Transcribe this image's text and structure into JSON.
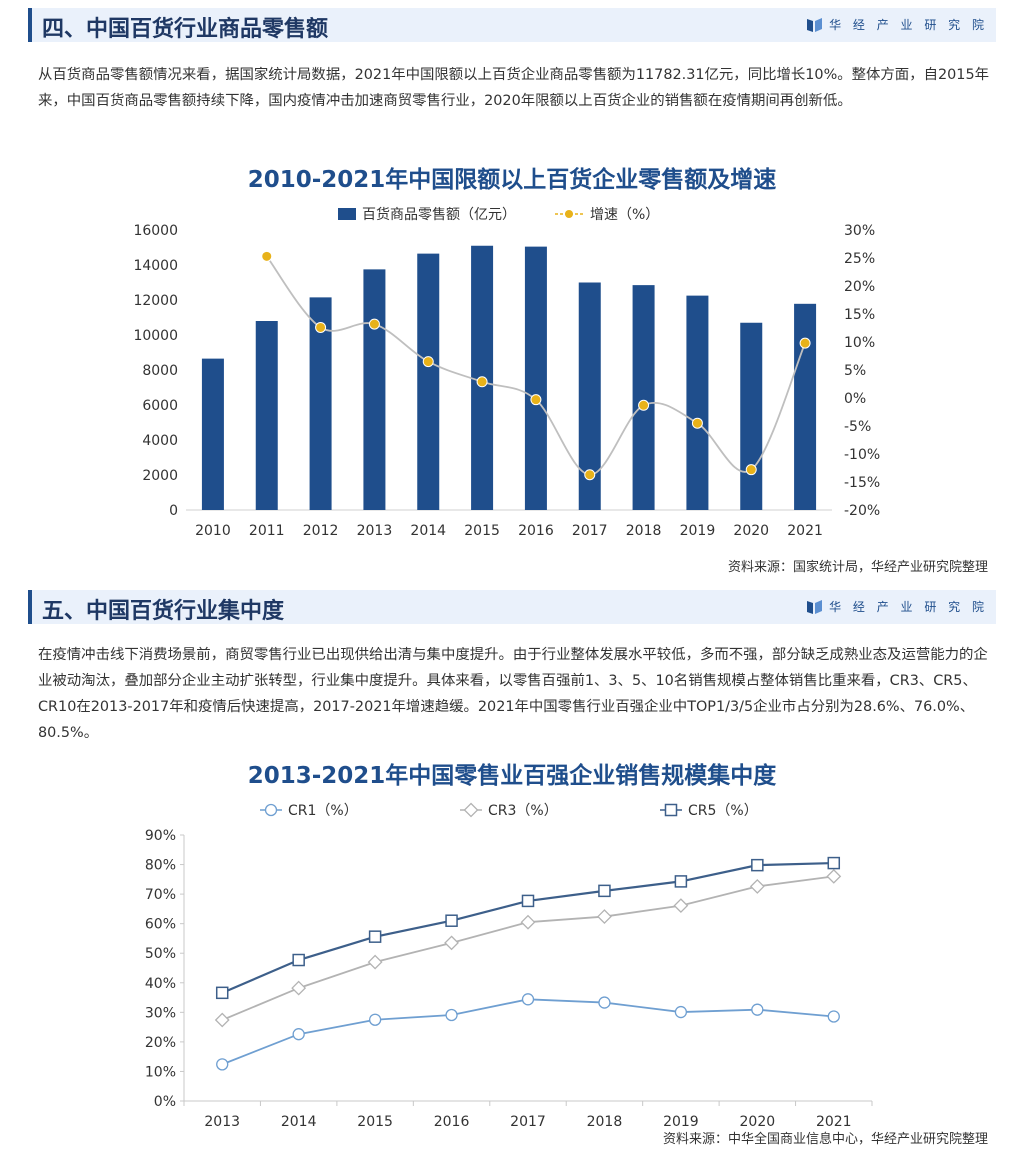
{
  "brand": {
    "name": "华 经 产 业 研 究 院"
  },
  "section4": {
    "title": "四、中国百货行业商品零售额",
    "paragraph": "从百货商品零售额情况来看，据国家统计局数据，2021年中国限额以上百货企业商品零售额为11782.31亿元，同比增长10%。整体方面，自2015年来，中国百货商品零售额持续下降，国内疫情冲击加速商贸零售行业，2020年限额以上百货企业的销售额在疫情期间再创新低。",
    "source": "资料来源：国家统计局，华经产业研究院整理"
  },
  "section5": {
    "title": "五、中国百货行业集中度",
    "paragraph": "在疫情冲击线下消费场景前，商贸零售行业已出现供给出清与集中度提升。由于行业整体发展水平较低，多而不强，部分缺乏成熟业态及运营能力的企业被动淘汰，叠加部分企业主动扩张转型，行业集中度提升。具体来看，以零售百强前1、3、5、10名销售规模占整体销售比重来看，CR3、CR5、CR10在2013-2017年和疫情后快速提高，2017-2021年增速趋缓。2021年中国零售行业百强企业中TOP1/3/5企业市占分别为28.6%、76.0%、80.5%。",
    "source": "资料来源：中华全国商业信息中心，华经产业研究院整理"
  },
  "colors": {
    "bar": "#1f4e8c",
    "dot": "#e8b21a",
    "growth_line": "#bfbfbf",
    "cr1": "#6f9fd1",
    "cr3": "#b3b3b3",
    "cr5": "#3d5f8a"
  },
  "chart_data": [
    {
      "type": "bar",
      "title": "2010-2021年中国限额以上百货企业零售额及增速",
      "categories": [
        "2010",
        "2011",
        "2012",
        "2013",
        "2014",
        "2015",
        "2016",
        "2017",
        "2018",
        "2019",
        "2020",
        "2021"
      ],
      "series": [
        {
          "name": "百货商品零售额（亿元）",
          "type": "bar",
          "axis": "left",
          "values": [
            8650,
            10800,
            12150,
            13750,
            14650,
            15100,
            15050,
            13000,
            12850,
            12250,
            10700,
            11782.31
          ]
        },
        {
          "name": "增速（%）",
          "type": "line",
          "axis": "right",
          "values": [
            null,
            25.3,
            12.6,
            13.2,
            6.5,
            2.9,
            -0.3,
            -13.7,
            -1.3,
            -4.5,
            -12.8,
            9.8
          ]
        }
      ],
      "y_left": {
        "min": 0,
        "max": 16000,
        "ticks": [
          "0",
          "2000",
          "4000",
          "6000",
          "8000",
          "10000",
          "12000",
          "14000",
          "16000"
        ]
      },
      "y_right": {
        "min": -20,
        "max": 30,
        "ticks": [
          "-20%",
          "-15%",
          "-10%",
          "-5%",
          "0%",
          "5%",
          "10%",
          "15%",
          "20%",
          "25%",
          "30%"
        ]
      },
      "legend_position": "top-center"
    },
    {
      "type": "line",
      "title": "2013-2021年中国零售业百强企业销售规模集中度",
      "categories": [
        "2013",
        "2014",
        "2015",
        "2016",
        "2017",
        "2018",
        "2019",
        "2020",
        "2021"
      ],
      "series": [
        {
          "name": "CR1（%）",
          "marker": "circle",
          "values": [
            12.4,
            22.6,
            27.5,
            29.1,
            34.4,
            33.3,
            30.1,
            30.9,
            28.6
          ]
        },
        {
          "name": "CR3（%）",
          "marker": "diamond",
          "values": [
            27.4,
            38.2,
            47.0,
            53.5,
            60.5,
            62.4,
            66.1,
            72.6,
            76.0
          ]
        },
        {
          "name": "CR5（%）",
          "marker": "square",
          "values": [
            36.6,
            47.7,
            55.6,
            61.0,
            67.7,
            71.1,
            74.3,
            79.8,
            80.5
          ]
        }
      ],
      "y": {
        "min": 0,
        "max": 90,
        "ticks": [
          "0%",
          "10%",
          "20%",
          "30%",
          "40%",
          "50%",
          "60%",
          "70%",
          "80%",
          "90%"
        ]
      },
      "legend_position": "top-center"
    }
  ]
}
